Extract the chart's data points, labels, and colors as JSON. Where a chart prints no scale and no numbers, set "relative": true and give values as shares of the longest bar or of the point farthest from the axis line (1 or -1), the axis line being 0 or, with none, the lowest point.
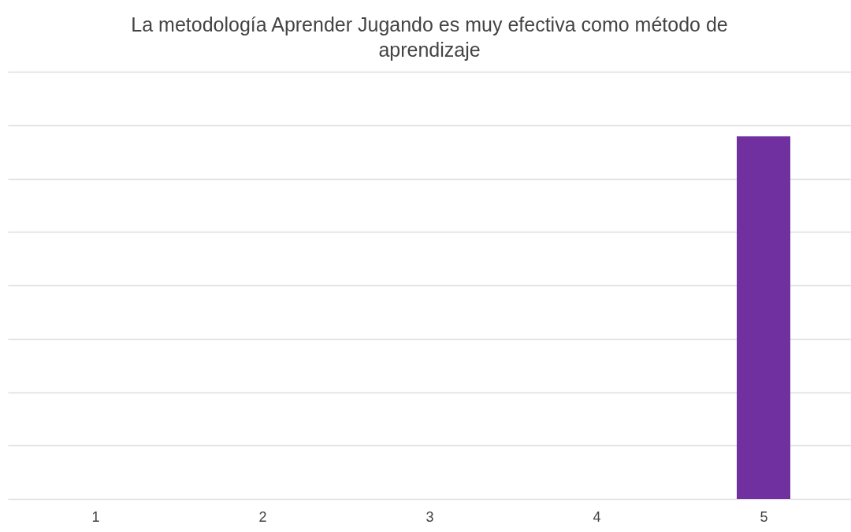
{
  "chart_data": {
    "type": "bar",
    "title": "La metodología Aprender Jugando es muy efectiva como método de aprendizaje",
    "categories": [
      "1",
      "2",
      "3",
      "4",
      "5"
    ],
    "relative": true,
    "grid": "y",
    "series": [
      {
        "color": "#7030a0",
        "values": [
          0,
          0,
          0,
          0,
          1
        ]
      }
    ]
  }
}
